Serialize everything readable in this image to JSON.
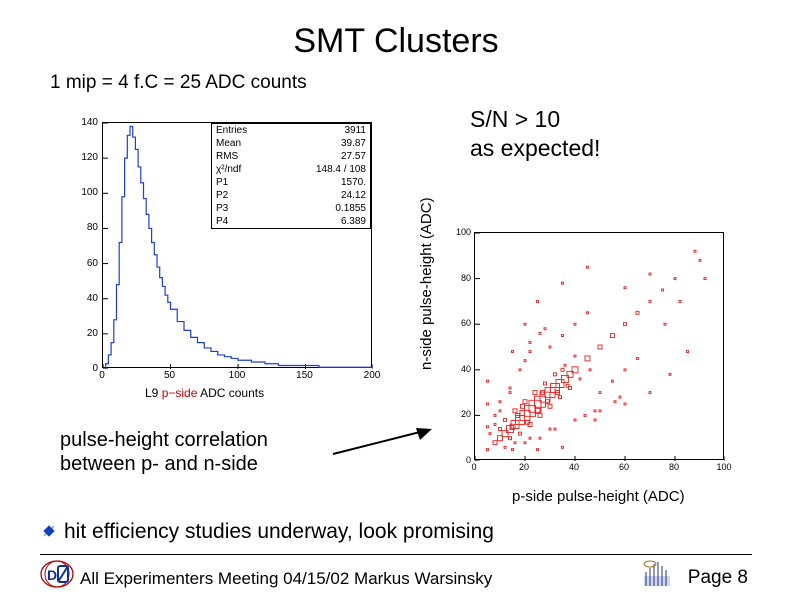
{
  "title": "SMT Clusters",
  "subtitle": "1 mip = 4 f.C = 25 ADC counts",
  "sn_text_line1": "S/N  > 10",
  "sn_text_line2": "as expected!",
  "histogram": {
    "caption_prefix": "L9 ",
    "caption_red": "p−side",
    "caption_suffix": " ADC counts",
    "ylim": [
      0,
      140
    ],
    "ytick_step": 20,
    "xlim": [
      0,
      200
    ],
    "xtick_step": 50,
    "yticks": [
      "0",
      "20",
      "40",
      "60",
      "80",
      "100",
      "120",
      "140"
    ],
    "xticks": [
      "0",
      "50",
      "100",
      "150",
      "200"
    ],
    "line_color": "#1a3fd1",
    "line_width": 1.2,
    "background_color": "#ffffff",
    "border_color": "#000000",
    "type": "histogram",
    "x_values": [
      0,
      2,
      4,
      6,
      8,
      10,
      12,
      14,
      16,
      18,
      20,
      22,
      24,
      26,
      28,
      30,
      32,
      34,
      36,
      38,
      40,
      42,
      44,
      46,
      48,
      50,
      55,
      60,
      65,
      70,
      75,
      80,
      85,
      90,
      95,
      100,
      110,
      120,
      130,
      140,
      150,
      160,
      170,
      180,
      190,
      200
    ],
    "y_values": [
      0,
      3,
      8,
      15,
      28,
      48,
      72,
      98,
      120,
      133,
      138,
      132,
      125,
      115,
      106,
      97,
      88,
      80,
      72,
      65,
      58,
      52,
      47,
      42,
      38,
      34,
      27,
      22,
      18,
      15,
      12,
      10,
      8,
      7,
      6,
      5,
      4,
      3,
      2,
      2,
      2,
      1,
      1,
      1,
      1,
      0
    ],
    "stat_box": [
      {
        "label": "Entries",
        "value": "3911"
      },
      {
        "label": "Mean",
        "value": "39.87"
      },
      {
        "label": "RMS",
        "value": "27.57"
      },
      {
        "label": "χ²/ndf",
        "value": "148.4 /  108"
      },
      {
        "label": "P1",
        "value": "1570."
      },
      {
        "label": "P2",
        "value": "24.12"
      },
      {
        "label": "P3",
        "value": "0.1855"
      },
      {
        "label": "P4",
        "value": "6.389"
      }
    ]
  },
  "correlation_text_line1": "pulse-height correlation",
  "correlation_text_line2": "between p- and n-side",
  "scatter": {
    "type": "scatter",
    "ylabel": "n-side pulse-height (ADC)",
    "xlabel": "p-side pulse-height (ADC)",
    "xlim": [
      0,
      100
    ],
    "ylim": [
      0,
      100
    ],
    "xticks": [
      "0",
      "20",
      "40",
      "60",
      "80",
      "100"
    ],
    "yticks": [
      "0",
      "20",
      "40",
      "60",
      "80",
      "100"
    ],
    "marker_color": "#e62020",
    "background_color": "#ffffff",
    "border_color": "#000000",
    "grid_step": 5,
    "points": [
      [
        8,
        8,
        4
      ],
      [
        10,
        10,
        5
      ],
      [
        12,
        12,
        6
      ],
      [
        14,
        14,
        7
      ],
      [
        16,
        16,
        8
      ],
      [
        18,
        18,
        9
      ],
      [
        20,
        20,
        10
      ],
      [
        22,
        22,
        11
      ],
      [
        24,
        24,
        12
      ],
      [
        26,
        26,
        11
      ],
      [
        28,
        28,
        10
      ],
      [
        30,
        30,
        10
      ],
      [
        32,
        32,
        9
      ],
      [
        34,
        34,
        8
      ],
      [
        36,
        36,
        7
      ],
      [
        38,
        38,
        6
      ],
      [
        40,
        40,
        6
      ],
      [
        45,
        45,
        5
      ],
      [
        50,
        50,
        4
      ],
      [
        55,
        55,
        4
      ],
      [
        60,
        60,
        3
      ],
      [
        65,
        65,
        3
      ],
      [
        70,
        70,
        2
      ],
      [
        75,
        75,
        2
      ],
      [
        80,
        80,
        2
      ],
      [
        10,
        14,
        3
      ],
      [
        14,
        10,
        3
      ],
      [
        12,
        18,
        3
      ],
      [
        18,
        12,
        3
      ],
      [
        16,
        22,
        4
      ],
      [
        22,
        16,
        4
      ],
      [
        20,
        26,
        4
      ],
      [
        26,
        20,
        4
      ],
      [
        24,
        30,
        4
      ],
      [
        30,
        24,
        4
      ],
      [
        28,
        34,
        3
      ],
      [
        34,
        28,
        3
      ],
      [
        32,
        38,
        3
      ],
      [
        38,
        32,
        3
      ],
      [
        36,
        42,
        2
      ],
      [
        42,
        36,
        2
      ],
      [
        40,
        46,
        2
      ],
      [
        46,
        40,
        2
      ],
      [
        8,
        20,
        2
      ],
      [
        20,
        8,
        2
      ],
      [
        10,
        26,
        2
      ],
      [
        26,
        10,
        2
      ],
      [
        14,
        32,
        2
      ],
      [
        32,
        14,
        2
      ],
      [
        18,
        40,
        2
      ],
      [
        40,
        18,
        2
      ],
      [
        22,
        48,
        2
      ],
      [
        48,
        22,
        2
      ],
      [
        26,
        56,
        2
      ],
      [
        56,
        26,
        2
      ],
      [
        12,
        6,
        2
      ],
      [
        6,
        12,
        2
      ],
      [
        16,
        8,
        2
      ],
      [
        8,
        16,
        2
      ],
      [
        22,
        10,
        2
      ],
      [
        10,
        22,
        2
      ],
      [
        30,
        14,
        2
      ],
      [
        14,
        30,
        2
      ],
      [
        50,
        30,
        2
      ],
      [
        30,
        50,
        2
      ],
      [
        55,
        35,
        2
      ],
      [
        35,
        55,
        2
      ],
      [
        60,
        40,
        2
      ],
      [
        40,
        60,
        2
      ],
      [
        65,
        45,
        2
      ],
      [
        45,
        65,
        2
      ],
      [
        15,
        48,
        2
      ],
      [
        48,
        18,
        2
      ],
      [
        20,
        60,
        2
      ],
      [
        60,
        25,
        2
      ],
      [
        25,
        70,
        2
      ],
      [
        70,
        30,
        2
      ],
      [
        35,
        78,
        2
      ],
      [
        78,
        38,
        2
      ],
      [
        45,
        85,
        2
      ],
      [
        85,
        48,
        2
      ],
      [
        5,
        5,
        2
      ],
      [
        5,
        15,
        2
      ],
      [
        15,
        5,
        2
      ],
      [
        5,
        25,
        2
      ],
      [
        25,
        5,
        2
      ],
      [
        5,
        35,
        2
      ],
      [
        35,
        6,
        2
      ],
      [
        90,
        88,
        2
      ],
      [
        88,
        92,
        2
      ],
      [
        92,
        80,
        2
      ],
      [
        82,
        70,
        2
      ],
      [
        70,
        82,
        2
      ],
      [
        76,
        60,
        2
      ],
      [
        60,
        76,
        2
      ],
      [
        44,
        20,
        2
      ],
      [
        20,
        44,
        2
      ],
      [
        50,
        22,
        2
      ],
      [
        22,
        52,
        2
      ],
      [
        58,
        28,
        2
      ],
      [
        28,
        58,
        2
      ],
      [
        15,
        15,
        5
      ],
      [
        17,
        20,
        4
      ],
      [
        19,
        24,
        4
      ],
      [
        21,
        17,
        4
      ],
      [
        25,
        22,
        5
      ],
      [
        27,
        30,
        4
      ],
      [
        29,
        26,
        4
      ],
      [
        33,
        30,
        4
      ],
      [
        35,
        40,
        3
      ],
      [
        37,
        33,
        3
      ]
    ]
  },
  "bullet_text": "hit efficiency studies underway, look promising",
  "footer_text": "All Experimenters Meeting 04/15/02 Markus Warsinsky",
  "page_label": "Page 8",
  "colors": {
    "title": "#000000",
    "accent_red": "#cc0000",
    "scatter_marker": "#e62020",
    "hist_line": "#1a3fd1"
  }
}
